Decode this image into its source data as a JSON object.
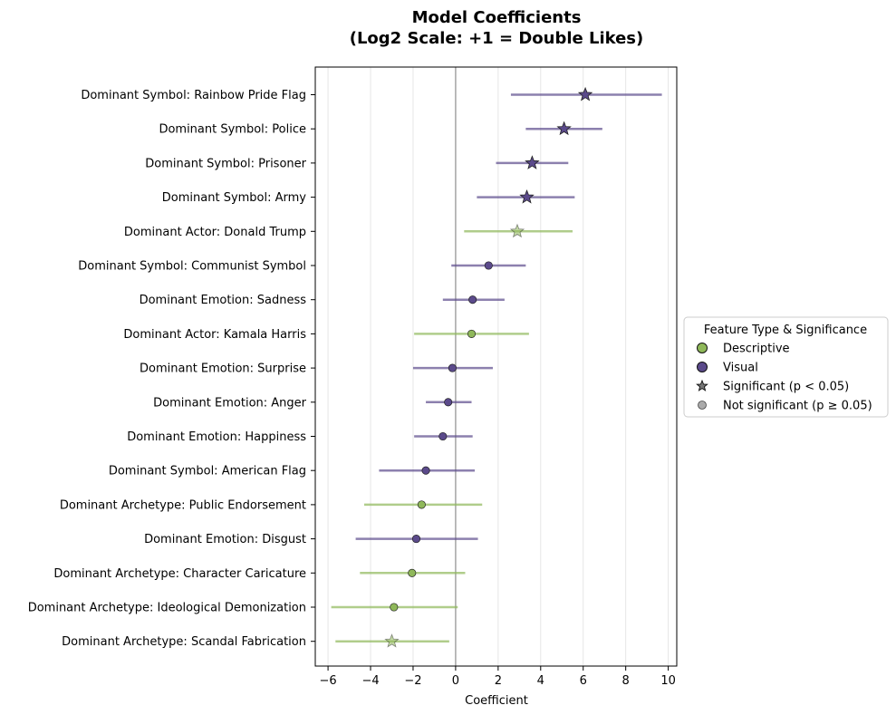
{
  "chart_data": {
    "type": "scatter",
    "subtype": "coefficient-plot",
    "title_lines": [
      "Model Coefficients",
      "(Log2 Scale: +1 = Double Likes)"
    ],
    "xlabel": "Coefficient",
    "ylabel": "",
    "xlim": [
      -6.6,
      10.4
    ],
    "xticks": [
      -6,
      -4,
      -2,
      0,
      2,
      4,
      6,
      8,
      10
    ],
    "xtick_labels": [
      "−6",
      "−4",
      "−2",
      "0",
      "2",
      "4",
      "6",
      "8",
      "10"
    ],
    "grid": "vertical",
    "reference_line": 0,
    "colors": {
      "Descriptive": "#8fb85a",
      "Visual": "#5b4a8b",
      "ref_line": "#aaaaaa",
      "grid": "#e6e6e6"
    },
    "features": [
      {
        "label": "Dominant Symbol: Rainbow Pride Flag",
        "coef": 6.1,
        "ci": [
          2.6,
          9.7
        ],
        "type": "Visual",
        "significant": true
      },
      {
        "label": "Dominant Symbol: Police",
        "coef": 5.1,
        "ci": [
          3.3,
          6.9
        ],
        "type": "Visual",
        "significant": true
      },
      {
        "label": "Dominant Symbol: Prisoner",
        "coef": 3.6,
        "ci": [
          1.9,
          5.3
        ],
        "type": "Visual",
        "significant": true
      },
      {
        "label": "Dominant Symbol: Army",
        "coef": 3.35,
        "ci": [
          1.0,
          5.6
        ],
        "type": "Visual",
        "significant": true
      },
      {
        "label": "Dominant Actor: Donald Trump",
        "coef": 2.9,
        "ci": [
          0.4,
          5.5
        ],
        "type": "Descriptive",
        "significant": true
      },
      {
        "label": "Dominant Symbol: Communist Symbol",
        "coef": 1.55,
        "ci": [
          -0.2,
          3.3
        ],
        "type": "Visual",
        "significant": false
      },
      {
        "label": "Dominant Emotion: Sadness",
        "coef": 0.8,
        "ci": [
          -0.6,
          2.3
        ],
        "type": "Visual",
        "significant": false
      },
      {
        "label": "Dominant Actor: Kamala Harris",
        "coef": 0.75,
        "ci": [
          -1.95,
          3.45
        ],
        "type": "Descriptive",
        "significant": false
      },
      {
        "label": "Dominant Emotion: Surprise",
        "coef": -0.15,
        "ci": [
          -2.0,
          1.75
        ],
        "type": "Visual",
        "significant": false
      },
      {
        "label": "Dominant Emotion: Anger",
        "coef": -0.35,
        "ci": [
          -1.4,
          0.75
        ],
        "type": "Visual",
        "significant": false
      },
      {
        "label": "Dominant Emotion: Happiness",
        "coef": -0.6,
        "ci": [
          -1.95,
          0.8
        ],
        "type": "Visual",
        "significant": false
      },
      {
        "label": "Dominant Symbol: American Flag",
        "coef": -1.4,
        "ci": [
          -3.6,
          0.9
        ],
        "type": "Visual",
        "significant": false
      },
      {
        "label": "Dominant Archetype: Public Endorsement",
        "coef": -1.6,
        "ci": [
          -4.3,
          1.25
        ],
        "type": "Descriptive",
        "significant": false
      },
      {
        "label": "Dominant Emotion: Disgust",
        "coef": -1.85,
        "ci": [
          -4.7,
          1.05
        ],
        "type": "Visual",
        "significant": false
      },
      {
        "label": "Dominant Archetype: Character Caricature",
        "coef": -2.05,
        "ci": [
          -4.5,
          0.45
        ],
        "type": "Descriptive",
        "significant": false
      },
      {
        "label": "Dominant Archetype: Ideological Demonization",
        "coef": -2.9,
        "ci": [
          -5.85,
          0.1
        ],
        "type": "Descriptive",
        "significant": false
      },
      {
        "label": "Dominant Archetype: Scandal Fabrication",
        "coef": -3.0,
        "ci": [
          -5.65,
          -0.3
        ],
        "type": "Descriptive",
        "significant": true
      }
    ],
    "legend": {
      "title": "Feature Type & Significance",
      "location": "center-right",
      "entries": [
        {
          "label": "Descriptive",
          "marker": "circle",
          "color": "#8fb85a"
        },
        {
          "label": "Visual",
          "marker": "circle",
          "color": "#5b4a8b"
        },
        {
          "label": "Significant (p < 0.05)",
          "marker": "star",
          "color": "#777777"
        },
        {
          "label": "Not significant (p ≥ 0.05)",
          "marker": "circle",
          "color": "#aaaaaa"
        }
      ]
    }
  }
}
